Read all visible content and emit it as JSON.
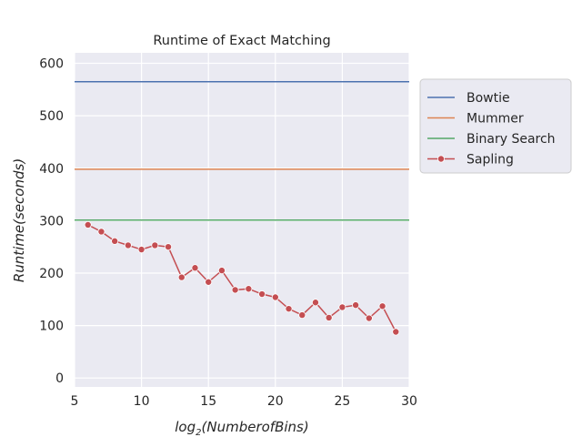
{
  "chart_data": {
    "type": "line",
    "title": "Runtime of Exact Matching",
    "xlabel": "log",
    "xlabel_sub": "2",
    "xlabel_rest": "(NumberofBins)",
    "ylabel": "Runtime(seconds)",
    "xlim": [
      5,
      30
    ],
    "ylim": [
      -17,
      620
    ],
    "xticks": [
      5,
      10,
      15,
      20,
      25,
      30
    ],
    "yticks": [
      0,
      100,
      200,
      300,
      400,
      500,
      600
    ],
    "grid": true,
    "legend_position": "right, outside plot",
    "series": [
      {
        "name": "Bowtie",
        "style": "hline",
        "value": 565,
        "color": "#4c72b0"
      },
      {
        "name": "Mummer",
        "style": "hline",
        "value": 398,
        "color": "#dd8452"
      },
      {
        "name": "Binary Search",
        "style": "hline",
        "value": 301,
        "color": "#55a868"
      },
      {
        "name": "Sapling",
        "style": "line-marker",
        "color": "#c44e52",
        "x": [
          6,
          7,
          8,
          9,
          10,
          11,
          12,
          13,
          14,
          15,
          16,
          17,
          18,
          19,
          20,
          21,
          22,
          23,
          24,
          25,
          26,
          27,
          28,
          29
        ],
        "y": [
          292,
          279,
          261,
          253,
          245,
          253,
          250,
          192,
          210,
          183,
          205,
          168,
          170,
          160,
          154,
          132,
          120,
          144,
          115,
          135,
          139,
          114,
          137,
          88
        ]
      }
    ]
  }
}
